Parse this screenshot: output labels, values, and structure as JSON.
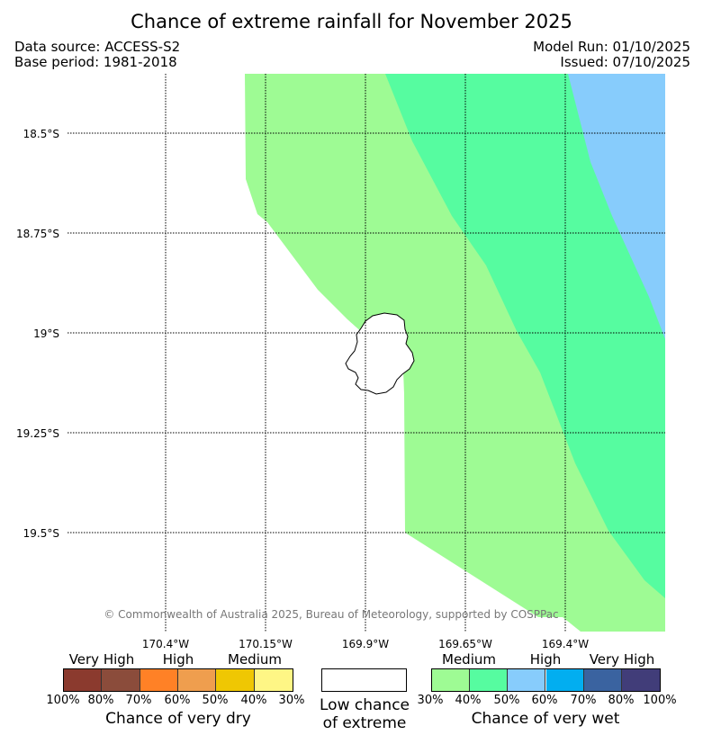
{
  "header": {
    "title": "Chance of extreme rainfall for November 2025",
    "data_source": "Data source: ACCESS-S2",
    "base_period": "Base period: 1981-2018",
    "model_run": "Model Run: 01/10/2025",
    "issued": "Issued: 07/10/2025"
  },
  "map": {
    "lat_labels": [
      "18.5°S",
      "18.75°S",
      "19°S",
      "19.25°S",
      "19.5°S"
    ],
    "lon_labels": [
      "170.4°W",
      "170.15°W",
      "169.9°W",
      "169.65°W",
      "169.4°W"
    ],
    "copyright": "© Commonwealth of Australia 2025, Bureau of Meteorology, supported by COSPPac",
    "region_colors": {
      "medium_wet": "#9efb94",
      "medium_wet_2": "#56fca0",
      "high_wet": "#87ccfc"
    }
  },
  "legend": {
    "dry": {
      "categories": [
        "Very High",
        "High",
        "Medium"
      ],
      "colors": [
        "#8b3a2e",
        "#8b4c3b",
        "#ff8126",
        "#ef9e4e",
        "#efc703",
        "#fef685"
      ],
      "ticks": [
        "100%",
        "80%",
        "70%",
        "60%",
        "50%",
        "40%",
        "30%"
      ],
      "caption": "Chance of very dry"
    },
    "low": {
      "caption_line1": "Low chance",
      "caption_line2": "of extreme",
      "color": "#ffffff"
    },
    "wet": {
      "categories": [
        "Medium",
        "High",
        "Very High"
      ],
      "colors": [
        "#9efb94",
        "#56fca0",
        "#87ccfc",
        "#02aef0",
        "#3a63a0",
        "#413d79"
      ],
      "ticks": [
        "30%",
        "40%",
        "50%",
        "60%",
        "70%",
        "80%",
        "100%"
      ],
      "caption": "Chance of very wet"
    }
  }
}
